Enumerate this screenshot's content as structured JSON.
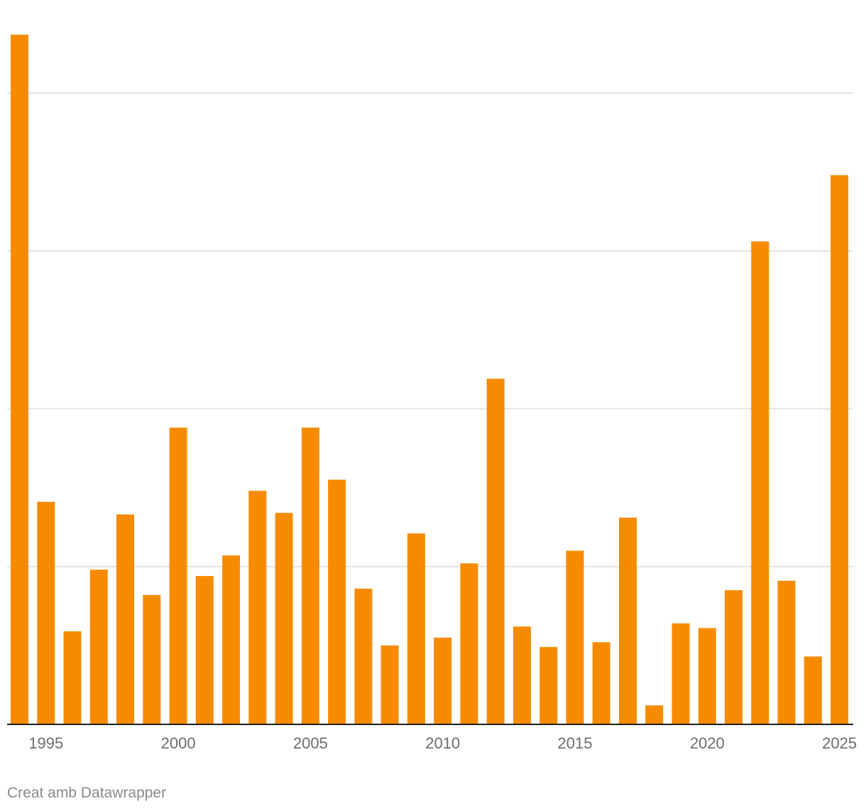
{
  "chart_data": {
    "type": "bar",
    "title": "",
    "xlabel": "",
    "ylabel": "",
    "x": [
      1994,
      1995,
      1996,
      1997,
      1998,
      1999,
      2000,
      2001,
      2002,
      2003,
      2004,
      2005,
      2006,
      2007,
      2008,
      2009,
      2010,
      2011,
      2012,
      2013,
      2014,
      2015,
      2016,
      2017,
      2018,
      2019,
      2020,
      2021,
      2022,
      2023,
      2024,
      2025
    ],
    "values": [
      43.7,
      14.1,
      5.9,
      9.8,
      13.3,
      8.2,
      18.8,
      9.4,
      10.7,
      14.8,
      13.4,
      18.8,
      15.5,
      8.6,
      5.0,
      12.1,
      5.5,
      10.2,
      21.9,
      6.2,
      4.9,
      11.0,
      5.2,
      13.1,
      1.2,
      6.4,
      6.1,
      8.5,
      30.6,
      9.1,
      4.3,
      34.8
    ],
    "x_ticks": [
      "1995",
      "2000",
      "2005",
      "2010",
      "2015",
      "2020",
      "2025"
    ],
    "ylim": [
      0,
      44
    ],
    "y_gridlines": [
      10,
      20,
      30,
      40
    ],
    "grid": true,
    "legend": "none",
    "bar_color": "#f78b00",
    "grid_color": "#e3e3e3",
    "axis_color": "#1e1e1e"
  },
  "footer": {
    "credit": "Creat amb Datawrapper"
  }
}
